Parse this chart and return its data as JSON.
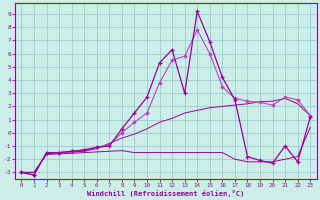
{
  "bg_color": "#cceee8",
  "grid_color": "#99cccc",
  "line_color": "#990099",
  "line_color2": "#bb44bb",
  "xlabel": "Windchill (Refroidissement éolien,°C)",
  "xlim": [
    -0.5,
    23.5
  ],
  "ylim": [
    -3.5,
    9.8
  ],
  "yticks": [
    -3,
    -2,
    -1,
    0,
    1,
    2,
    3,
    4,
    5,
    6,
    7,
    8,
    9
  ],
  "xticks": [
    0,
    1,
    2,
    3,
    4,
    5,
    6,
    7,
    8,
    9,
    10,
    11,
    12,
    13,
    14,
    15,
    16,
    17,
    18,
    19,
    20,
    21,
    22,
    23
  ],
  "s1_x": [
    0,
    1,
    2,
    3,
    4,
    5,
    6,
    7,
    8,
    9,
    10,
    11,
    12,
    13,
    14,
    15,
    16,
    17,
    18,
    19,
    20,
    21,
    22,
    23
  ],
  "s1_y": [
    -3.0,
    -3.2,
    -1.5,
    -1.5,
    -1.4,
    -1.3,
    -1.1,
    -1.0,
    0.3,
    1.5,
    2.7,
    5.3,
    6.3,
    3.0,
    9.2,
    6.9,
    4.2,
    2.5,
    -1.8,
    -2.1,
    -2.3,
    -1.0,
    -2.2,
    1.2
  ],
  "s2_x": [
    0,
    1,
    2,
    3,
    4,
    5,
    6,
    7,
    8,
    9,
    10,
    11,
    12,
    13,
    14,
    15,
    16,
    17,
    18,
    19,
    20,
    21,
    22,
    23
  ],
  "s2_y": [
    -3.0,
    -3.2,
    -1.5,
    -1.5,
    -1.4,
    -1.3,
    -1.1,
    -0.9,
    0.0,
    0.8,
    1.5,
    3.8,
    5.5,
    5.8,
    7.8,
    6.0,
    3.5,
    2.6,
    2.4,
    2.3,
    2.1,
    2.7,
    2.5,
    1.3
  ],
  "s3_x": [
    0,
    1,
    2,
    3,
    4,
    5,
    6,
    7,
    8,
    9,
    10,
    11,
    12,
    13,
    14,
    15,
    16,
    17,
    18,
    19,
    20,
    21,
    22,
    23
  ],
  "s3_y": [
    -3.0,
    -3.0,
    -1.6,
    -1.5,
    -1.45,
    -1.4,
    -1.2,
    -0.8,
    -0.4,
    -0.1,
    0.3,
    0.8,
    1.1,
    1.5,
    1.7,
    1.9,
    2.0,
    2.1,
    2.2,
    2.35,
    2.4,
    2.6,
    2.2,
    1.3
  ],
  "s4_x": [
    0,
    1,
    2,
    3,
    4,
    5,
    6,
    7,
    8,
    9,
    10,
    11,
    12,
    13,
    14,
    15,
    16,
    17,
    18,
    19,
    20,
    21,
    22,
    23
  ],
  "s4_y": [
    -3.0,
    -3.0,
    -1.65,
    -1.6,
    -1.55,
    -1.5,
    -1.45,
    -1.4,
    -1.35,
    -1.5,
    -1.5,
    -1.5,
    -1.5,
    -1.5,
    -1.5,
    -1.5,
    -1.5,
    -2.0,
    -2.2,
    -2.2,
    -2.2,
    -2.0,
    -1.8,
    0.4
  ]
}
